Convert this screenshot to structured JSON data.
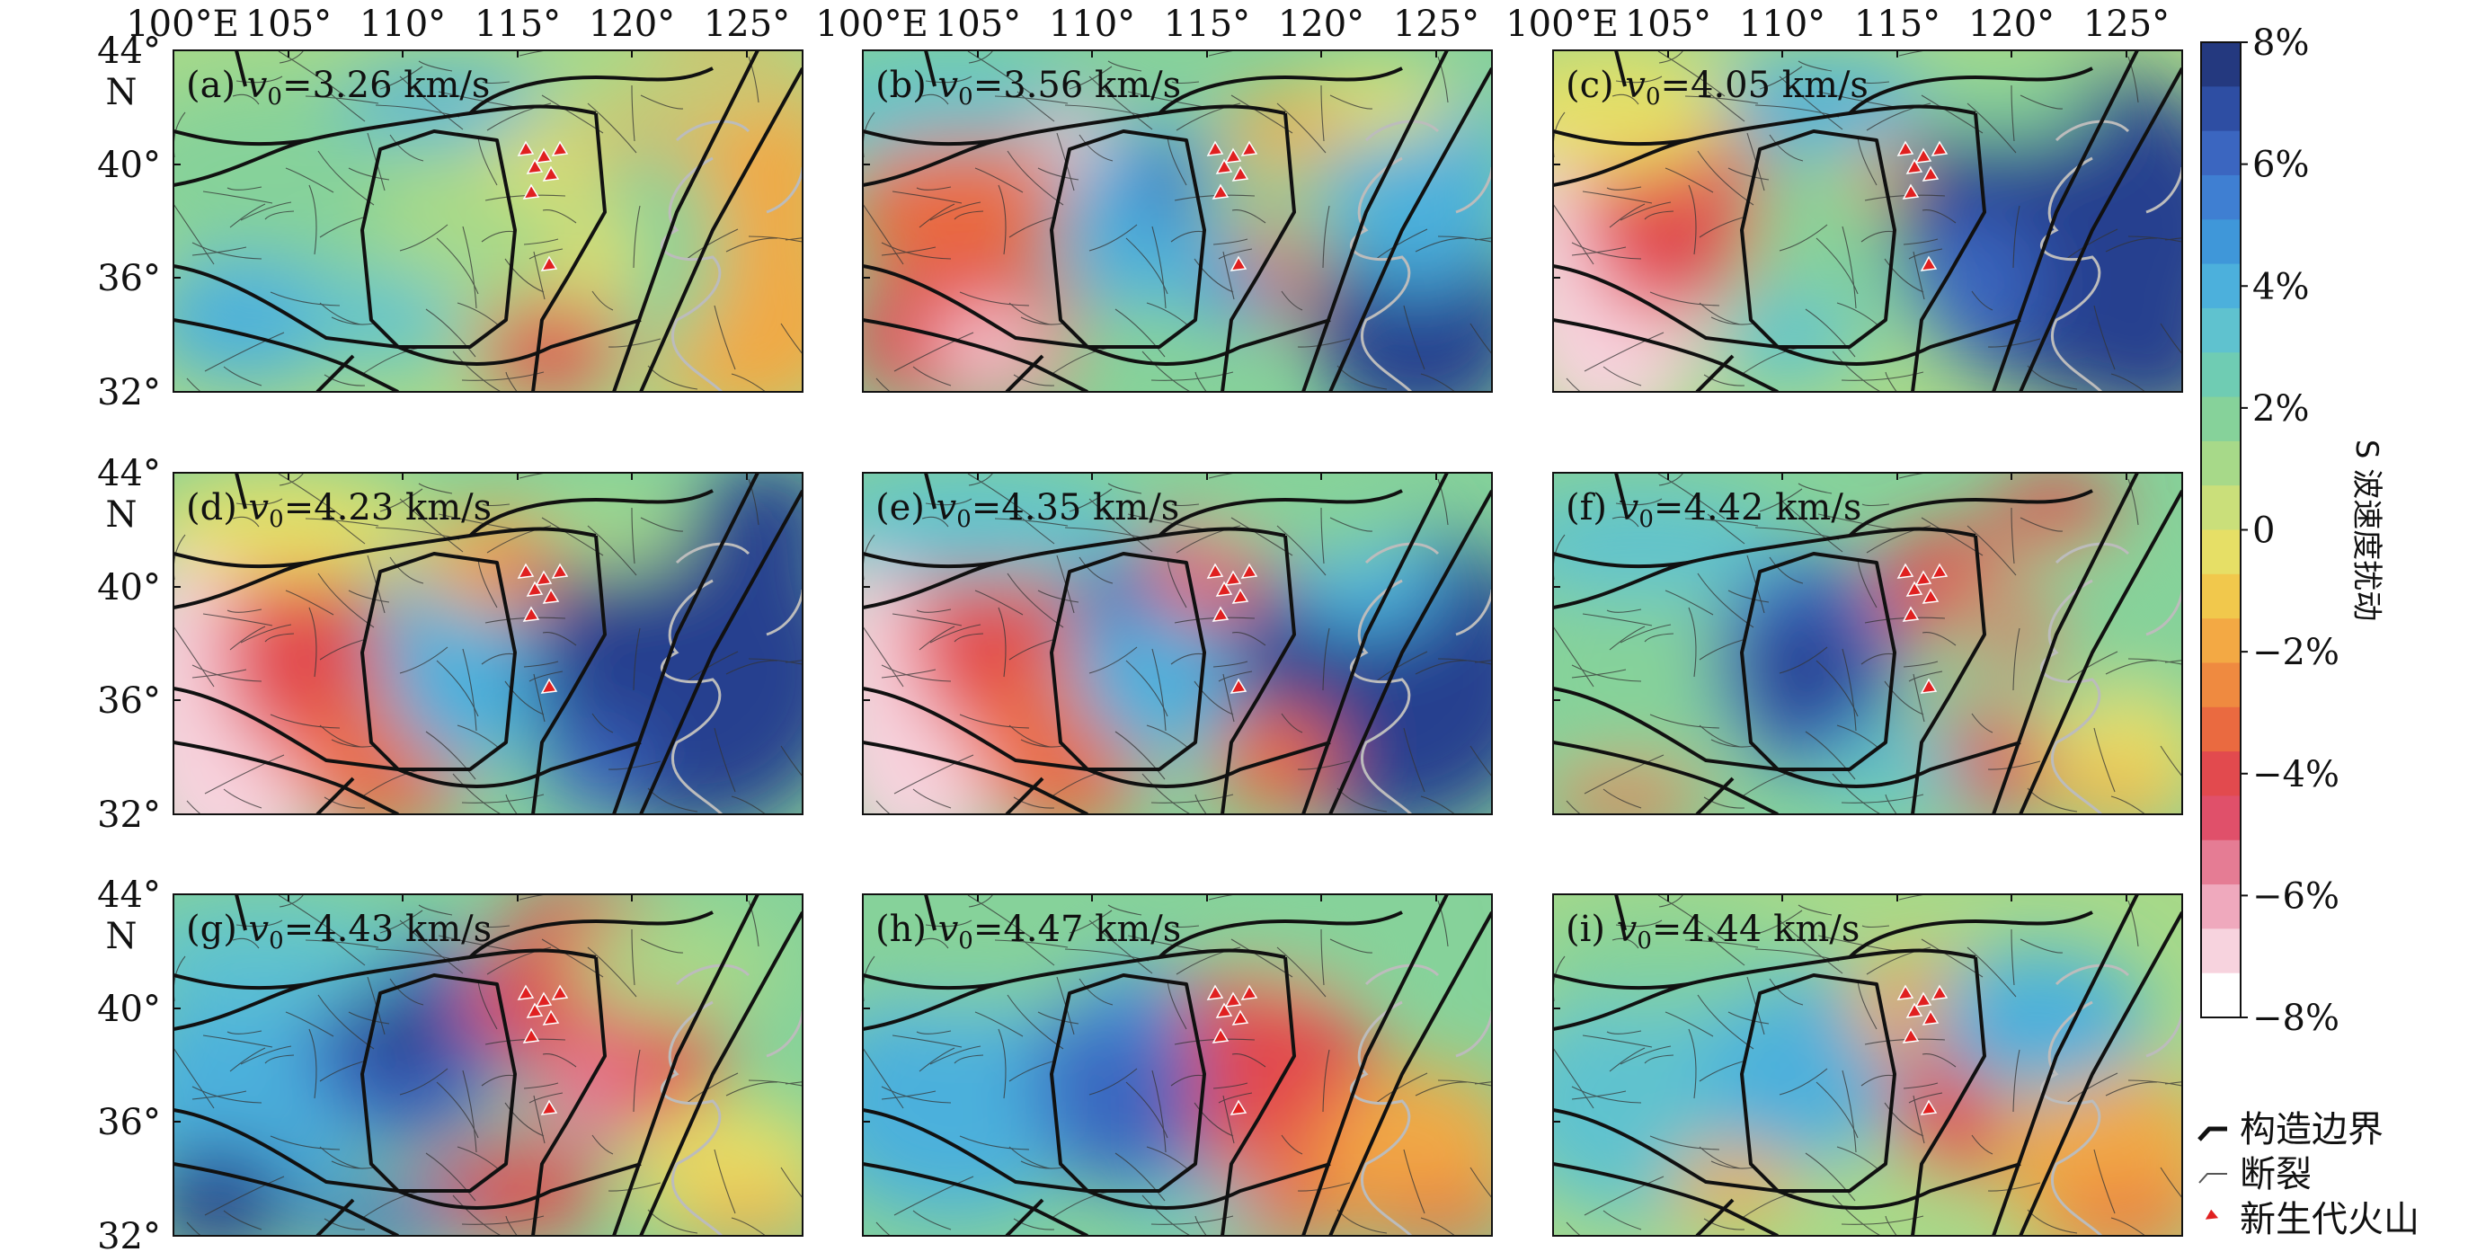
{
  "figure": {
    "top_lon_labels": [
      "100°E",
      "105°",
      "110°",
      "115°",
      "120°",
      "125°"
    ],
    "lat_labels": [
      "44°",
      "40°",
      "36°",
      "32°"
    ],
    "north_label": "N",
    "panels": [
      {
        "id": "a",
        "label": "(a)",
        "v_symbol": "v",
        "v_sub": "0",
        "velocity": "=3.26 km/s"
      },
      {
        "id": "b",
        "label": "(b)",
        "v_symbol": "v",
        "v_sub": "0",
        "velocity": "=3.56 km/s"
      },
      {
        "id": "c",
        "label": "(c)",
        "v_symbol": "v",
        "v_sub": "0",
        "velocity": "=4.05 km/s"
      },
      {
        "id": "d",
        "label": "(d)",
        "v_symbol": "v",
        "v_sub": "0",
        "velocity": "=4.23 km/s"
      },
      {
        "id": "e",
        "label": "(e)",
        "v_symbol": "v",
        "v_sub": "0",
        "velocity": "=4.35 km/s"
      },
      {
        "id": "f",
        "label": "(f)",
        "v_symbol": "v",
        "v_sub": "0",
        "velocity": "=4.42 km/s"
      },
      {
        "id": "g",
        "label": "(g)",
        "v_symbol": "v",
        "v_sub": "0",
        "velocity": "=4.43 km/s"
      },
      {
        "id": "h",
        "label": "(h)",
        "v_symbol": "v",
        "v_sub": "0",
        "velocity": "=4.47 km/s"
      },
      {
        "id": "i",
        "label": "(i)",
        "v_symbol": "v",
        "v_sub": "0",
        "velocity": "=4.44 km/s"
      }
    ]
  },
  "colorbar": {
    "title": "S 波速度扰动",
    "tick_labels": [
      "8%",
      "6%",
      "4%",
      "2%",
      "0",
      "−2%",
      "−4%",
      "−6%",
      "−8%"
    ],
    "colors": [
      "#24397f",
      "#2e4ea3",
      "#3b66c0",
      "#3f7fd2",
      "#3f97d9",
      "#4cb0dc",
      "#5fc2cf",
      "#6fccb3",
      "#86d29a",
      "#a7d989",
      "#cadf7a",
      "#e6df66",
      "#f1c84c",
      "#f3a944",
      "#ef8a40",
      "#ea6a40",
      "#e24a4e",
      "#e0506a",
      "#e57c94",
      "#efa9bd",
      "#f7d3de",
      "#ffffff"
    ]
  },
  "legend": {
    "items": [
      {
        "label": "构造边界",
        "symbol": "thick-line"
      },
      {
        "label": "断裂",
        "symbol": "thin-line"
      },
      {
        "label": "新生代火山",
        "symbol": "red-triangle"
      }
    ]
  },
  "colors": {
    "boundary": "#111111",
    "fault": "#333333",
    "coast": "#bcbcbc",
    "volcano": "#e02020",
    "volcano_edge": "#ffffff"
  }
}
